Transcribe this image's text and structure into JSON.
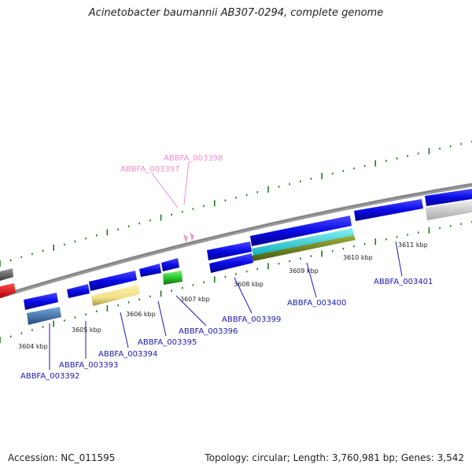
{
  "title": "Acinetobacter baumannii AB307-0294, complete genome",
  "footer": {
    "accession": "Accession: NC_011595",
    "summary": "Topology: circular; Length: 3,760,981 bp; Genes: 3,542"
  },
  "ticks": [
    "3604 kbp",
    "3605 kbp",
    "3606 kbp",
    "3607 kbp",
    "3608 kbp",
    "3609 kbp",
    "3610 kbp",
    "3611 kbp"
  ],
  "genes_forward": [
    "ABBFA_003397",
    "ABBFA_003398"
  ],
  "genes_reverse": [
    "ABBFA_003392",
    "ABBFA_003393",
    "ABBFA_003394",
    "ABBFA_003395",
    "ABBFA_003396",
    "ABBFA_003399",
    "ABBFA_003400",
    "ABBFA_003401"
  ],
  "colors": {
    "gene_blue": "#0a0ae0",
    "label_blue": "#1a1ab0",
    "label_pink": "#f08cc8",
    "tick_green": "#1a7a1a",
    "backbone": "#8a8a8a"
  }
}
